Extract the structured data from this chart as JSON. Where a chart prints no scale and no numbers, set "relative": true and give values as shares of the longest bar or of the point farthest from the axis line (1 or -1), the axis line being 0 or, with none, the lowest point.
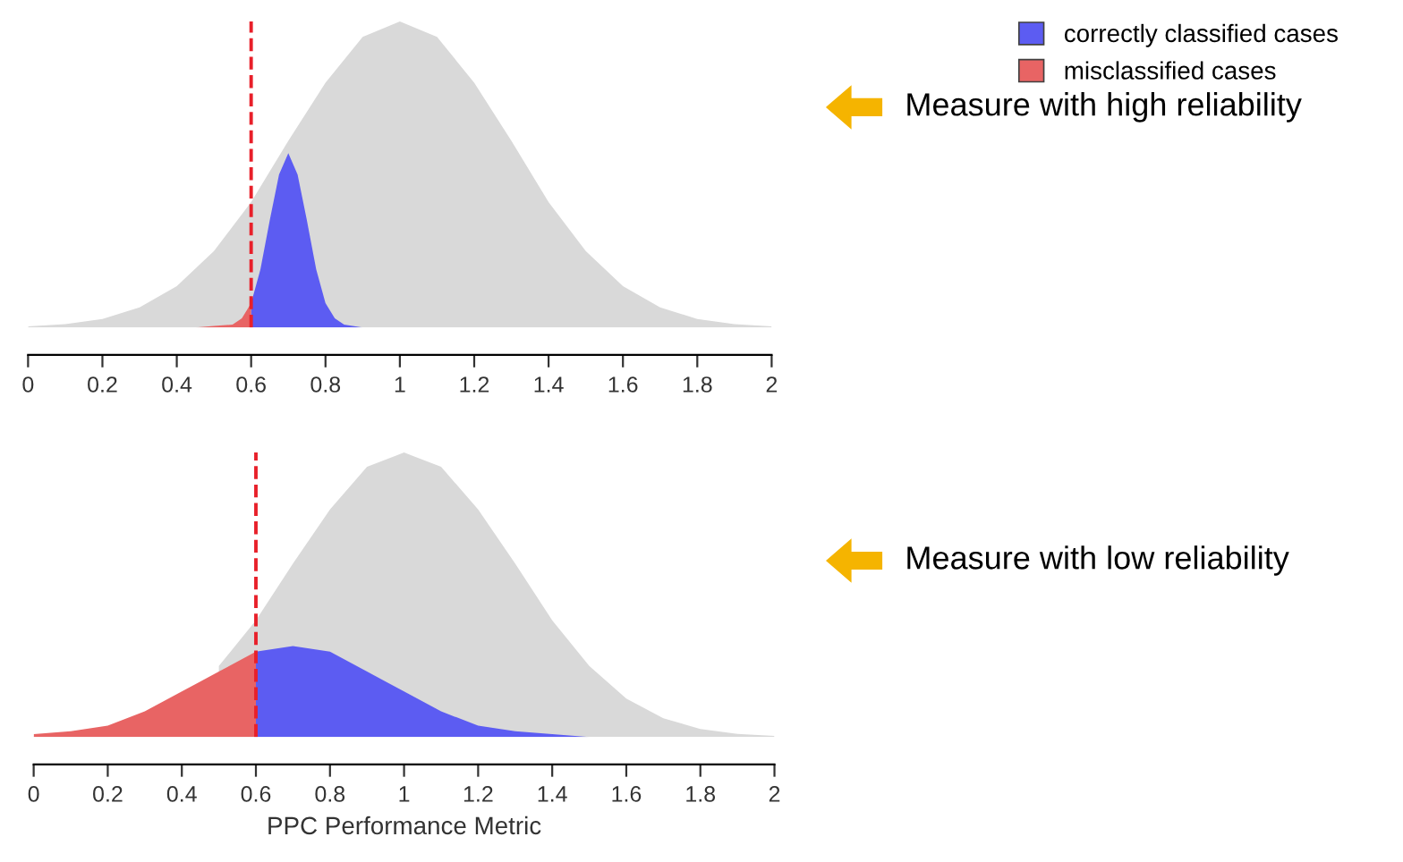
{
  "chart_data": [
    {
      "type": "area",
      "relative": true,
      "legend": "top right",
      "grid": false,
      "tick_labels": "x",
      "xlim": [
        0,
        2
      ],
      "xticks": [
        0,
        0.2,
        0.4,
        0.6,
        0.8,
        1,
        1.2,
        1.4,
        1.6,
        1.8,
        2
      ],
      "series": [
        {
          "color": "#d9d9d9",
          "x": [
            0,
            0.1,
            0.2,
            0.3,
            0.4,
            0.5,
            0.6,
            0.7,
            0.8,
            0.9,
            1,
            1.1,
            1.2,
            1.3,
            1.4,
            1.5,
            1.6,
            1.7,
            1.8,
            1.9,
            2
          ],
          "values": [
            0.004,
            0.011,
            0.028,
            0.066,
            0.135,
            0.25,
            0.41,
            0.61,
            0.8,
            0.95,
            1,
            0.95,
            0.8,
            0.61,
            0.41,
            0.25,
            0.135,
            0.066,
            0.028,
            0.011,
            0.004
          ]
        },
        {
          "name": "correctly classified cases",
          "color": "#5c5cf2",
          "x": [
            0.6,
            0.625,
            0.65,
            0.675,
            0.7,
            0.725,
            0.75,
            0.775,
            0.8,
            0.825,
            0.85,
            0.9
          ],
          "values": [
            0.08,
            0.19,
            0.35,
            0.5,
            0.57,
            0.5,
            0.35,
            0.19,
            0.08,
            0.03,
            0.01,
            0
          ]
        },
        {
          "name": "misclassified cases",
          "color": "#e86464",
          "x": [
            0.45,
            0.5,
            0.55,
            0.575,
            0.6
          ],
          "values": [
            0,
            0.005,
            0.01,
            0.03,
            0.08
          ]
        }
      ],
      "ref_lines": [
        {
          "axis": "x",
          "value": 0.6,
          "color": "#e8202a",
          "line_style": "dashed"
        }
      ],
      "annotations": [
        "Measure with high reliability"
      ]
    },
    {
      "type": "area",
      "relative": true,
      "grid": false,
      "tick_labels": "x",
      "xlabel": "PPC Performance Metric",
      "xlim": [
        0,
        2
      ],
      "xticks": [
        0,
        0.2,
        0.4,
        0.6,
        0.8,
        1,
        1.2,
        1.4,
        1.6,
        1.8,
        2
      ],
      "series": [
        {
          "color": "#d9d9d9",
          "x": [
            0,
            0.1,
            0.2,
            0.3,
            0.4,
            0.5,
            0.6,
            0.7,
            0.8,
            0.9,
            1,
            1.1,
            1.2,
            1.3,
            1.4,
            1.5,
            1.6,
            1.7,
            1.8,
            1.9,
            2
          ],
          "values": [
            0.004,
            0.011,
            0.028,
            null,
            null,
            0.25,
            0.41,
            0.61,
            0.8,
            0.95,
            1,
            0.95,
            0.8,
            0.61,
            0.41,
            0.25,
            0.135,
            0.066,
            0.028,
            0.011,
            0.004
          ]
        },
        {
          "color": "#5c5cf2",
          "x": [
            0.6,
            0.7,
            0.8,
            0.9,
            1,
            1.1,
            1.2,
            1.3,
            1.4,
            1.5
          ],
          "values": [
            0.3,
            0.32,
            0.3,
            0.23,
            0.16,
            0.09,
            0.04,
            0.02,
            0.01,
            0
          ]
        },
        {
          "color": "#e86464",
          "x": [
            0,
            0.1,
            0.2,
            0.3,
            0.4,
            0.5,
            0.6
          ],
          "values": [
            0.01,
            0.02,
            0.04,
            0.09,
            0.16,
            0.23,
            0.3
          ]
        }
      ],
      "ref_lines": [
        {
          "axis": "x",
          "value": 0.6,
          "color": "#e8202a",
          "line_style": "dashed"
        }
      ],
      "annotations": [
        "Measure with low reliability"
      ]
    }
  ]
}
